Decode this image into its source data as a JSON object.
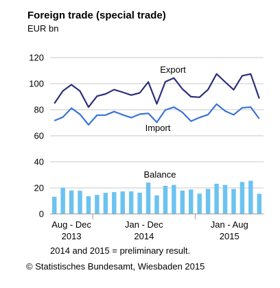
{
  "title": "Foreign trade (special trade)",
  "unit": "EUR bn",
  "note": "2014 and 2015 = preliminary result.",
  "source": "© Statistisches Bundesamt, Wiesbaden 2015",
  "colors": {
    "export": "#2b2f7b",
    "import": "#3a73d9",
    "balance": "#6cc3f0",
    "grid": "#c9c9c9"
  },
  "chart_data": {
    "type": "line",
    "title": "Foreign trade (special trade)",
    "ylabel": "EUR bn",
    "ylim": [
      0,
      120
    ],
    "yticks": [
      0,
      20,
      40,
      60,
      80,
      100,
      120
    ],
    "grid": true,
    "x_period_labels": [
      {
        "months": "Aug - Dec",
        "year": "2013"
      },
      {
        "months": "Jan - Dec",
        "year": "2014"
      },
      {
        "months": "Jan - Aug",
        "year": "2015"
      }
    ],
    "series": [
      {
        "name": "Export",
        "type": "line",
        "values": [
          84.8,
          94.5,
          99.2,
          94.3,
          82.0,
          90.4,
          92.1,
          95.4,
          93.4,
          91.2,
          92.9,
          101.3,
          84.5,
          101.4,
          104.3,
          95.9,
          90.0,
          89.6,
          95.4,
          107.5,
          101.3,
          95.3,
          106.0,
          107.5,
          88.6
        ]
      },
      {
        "name": "Import",
        "type": "line",
        "values": [
          71.6,
          74.3,
          81.2,
          76.5,
          68.4,
          75.8,
          75.9,
          78.6,
          76.1,
          73.9,
          76.6,
          77.2,
          70.3,
          79.8,
          82.0,
          78.0,
          71.2,
          74.0,
          76.2,
          84.3,
          79.0,
          76.1,
          81.5,
          82.0,
          73.1
        ]
      },
      {
        "name": "Balance",
        "type": "bar",
        "values": [
          13.2,
          20.2,
          18.0,
          17.8,
          13.6,
          14.6,
          16.2,
          16.8,
          17.3,
          17.3,
          16.3,
          24.1,
          14.2,
          21.6,
          22.3,
          17.9,
          18.8,
          15.6,
          19.2,
          23.2,
          22.3,
          19.2,
          24.5,
          25.5,
          15.5
        ]
      }
    ]
  }
}
